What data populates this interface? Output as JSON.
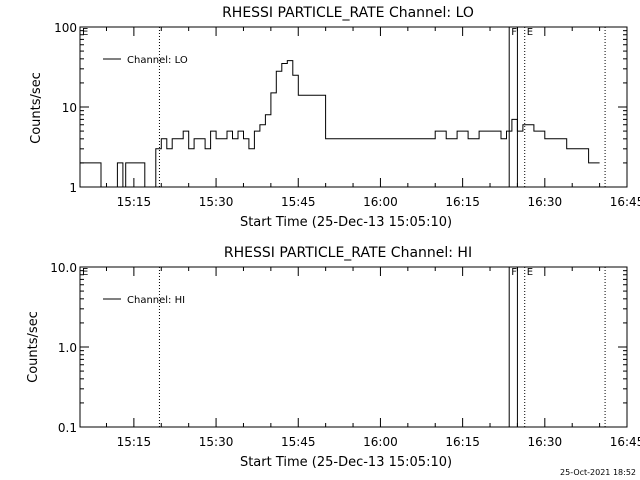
{
  "timestamp": "25-Oct-2021 18:52",
  "chart_data": [
    {
      "type": "line",
      "title": "RHESSI PARTICLE_RATE Channel: LO",
      "xlabel": "Start Time (25-Dec-13 15:05:10)",
      "ylabel": "Counts/sec",
      "yscale": "log",
      "ylim": [
        1,
        100
      ],
      "ytick_labels": [
        "1",
        "10",
        "100"
      ],
      "ytick_values": [
        1,
        10,
        100
      ],
      "xlim": [
        "15:05:10",
        "16:45:00"
      ],
      "xtick_labels": [
        "15:15",
        "15:30",
        "15:45",
        "16:00",
        "16:15",
        "16:30",
        "16:45"
      ],
      "legend": "top-left",
      "series": [
        {
          "name": "Channel: LO",
          "x": [
            "15:05:10",
            "15:07:00",
            "15:09:00",
            "15:12:00",
            "15:13:00",
            "15:13:30",
            "15:14:00",
            "15:15:00",
            "15:16:00",
            "15:17:00",
            "15:18:00",
            "15:19:00",
            "15:20:00",
            "15:21:00",
            "15:22:00",
            "15:23:00",
            "15:24:00",
            "15:25:00",
            "15:26:00",
            "15:27:00",
            "15:28:00",
            "15:29:00",
            "15:30:00",
            "15:31:00",
            "15:32:00",
            "15:33:00",
            "15:34:00",
            "15:35:00",
            "15:36:00",
            "15:37:00",
            "15:38:00",
            "15:39:00",
            "15:40:00",
            "15:41:00",
            "15:42:00",
            "15:43:00",
            "15:44:00",
            "15:45:00",
            "15:50:00",
            "15:55:00",
            "16:00:00",
            "16:05:00",
            "16:10:00",
            "16:12:00",
            "16:14:00",
            "16:16:00",
            "16:18:00",
            "16:20:00",
            "16:22:00",
            "16:23:00",
            "16:24:00",
            "16:25:00",
            "16:26:00",
            "16:27:00",
            "16:28:00",
            "16:30:00",
            "16:32:00",
            "16:34:00",
            "16:36:00",
            "16:38:00",
            "16:40:00"
          ],
          "y": [
            2,
            2,
            1,
            2,
            1,
            2,
            2,
            2,
            2,
            1,
            1,
            3,
            4,
            3,
            4,
            4,
            5,
            3,
            4,
            4,
            3,
            5,
            4,
            4,
            5,
            4,
            5,
            4,
            3,
            5,
            6,
            8,
            15,
            28,
            35,
            38,
            25,
            14,
            4,
            4,
            4,
            4,
            5,
            4,
            5,
            4,
            5,
            5,
            4,
            5,
            7,
            5,
            6,
            6,
            5,
            4,
            4,
            3,
            3,
            2,
            2
          ]
        }
      ],
      "flags": [
        {
          "label": "E",
          "time": "15:05:10",
          "style": "none"
        },
        {
          "label": "",
          "time": "15:19:40",
          "style": "dotted"
        },
        {
          "label": "F",
          "time": "16:23:30",
          "style": "solid"
        },
        {
          "label": "",
          "time": "16:25:00",
          "style": "solid"
        },
        {
          "label": "E",
          "time": "16:26:20",
          "style": "dotted"
        },
        {
          "label": "",
          "time": "16:41:00",
          "style": "dotted"
        }
      ]
    },
    {
      "type": "line",
      "title": "RHESSI PARTICLE_RATE Channel: HI",
      "xlabel": "Start Time (25-Dec-13 15:05:10)",
      "ylabel": "Counts/sec",
      "yscale": "log",
      "ylim": [
        0.1,
        10
      ],
      "ytick_labels": [
        "0.1",
        "1.0",
        "10.0"
      ],
      "ytick_values": [
        0.1,
        1,
        10
      ],
      "xlim": [
        "15:05:10",
        "16:45:00"
      ],
      "xtick_labels": [
        "15:15",
        "15:30",
        "15:45",
        "16:00",
        "16:15",
        "16:30",
        "16:45"
      ],
      "legend": "top-left",
      "series": [
        {
          "name": "Channel: HI",
          "x": [],
          "y": []
        }
      ],
      "flags": [
        {
          "label": "E",
          "time": "15:05:10",
          "style": "none"
        },
        {
          "label": "",
          "time": "15:19:40",
          "style": "dotted"
        },
        {
          "label": "F",
          "time": "16:23:30",
          "style": "solid"
        },
        {
          "label": "",
          "time": "16:25:00",
          "style": "solid"
        },
        {
          "label": "E",
          "time": "16:26:20",
          "style": "dotted"
        },
        {
          "label": "",
          "time": "16:41:00",
          "style": "dotted"
        }
      ]
    }
  ]
}
